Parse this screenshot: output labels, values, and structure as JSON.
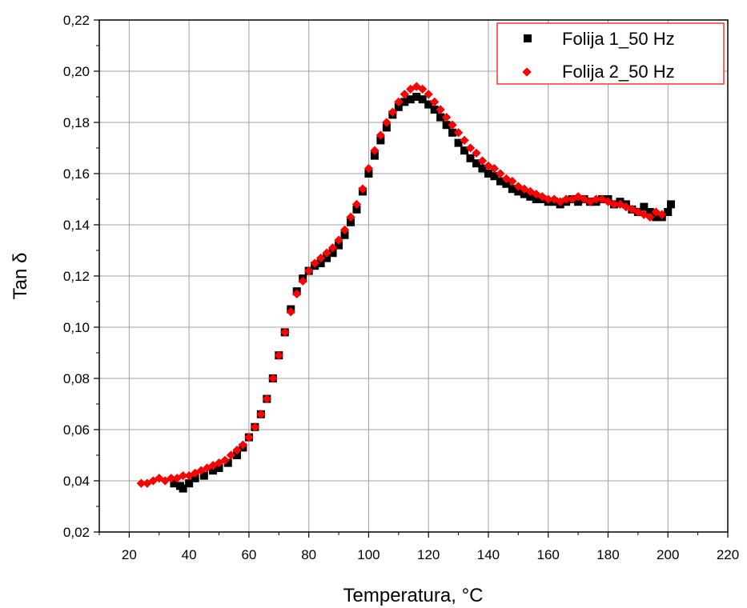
{
  "chart_data": {
    "type": "scatter",
    "xlabel": "Temperatura, °C",
    "ylabel": "Tan δ",
    "xlim": [
      10,
      220
    ],
    "ylim": [
      0.02,
      0.22
    ],
    "xticks": [
      "20",
      "40",
      "60",
      "80",
      "100",
      "120",
      "140",
      "160",
      "180",
      "200",
      "220"
    ],
    "yticks": [
      "0,02",
      "0,04",
      "0,06",
      "0,08",
      "0,10",
      "0,12",
      "0,14",
      "0,16",
      "0,18",
      "0,20",
      "0,22"
    ],
    "grid": true,
    "legend_position": "top-right",
    "series": [
      {
        "name": "Folija 1_50 Hz",
        "marker": "square",
        "color": "#000000",
        "x": [
          35,
          37,
          38,
          40,
          42,
          45,
          48,
          50,
          53,
          56,
          58,
          60,
          62,
          64,
          66,
          68,
          70,
          72,
          74,
          76,
          78,
          80,
          82,
          84,
          86,
          88,
          90,
          92,
          94,
          96,
          98,
          100,
          102,
          104,
          106,
          108,
          110,
          112,
          114,
          116,
          118,
          120,
          122,
          124,
          126,
          128,
          130,
          132,
          134,
          136,
          138,
          140,
          142,
          144,
          146,
          148,
          150,
          152,
          154,
          156,
          158,
          160,
          162,
          164,
          166,
          168,
          170,
          172,
          174,
          176,
          178,
          180,
          182,
          184,
          186,
          188,
          190,
          192,
          194,
          196,
          198,
          200,
          201
        ],
        "y": [
          0.039,
          0.038,
          0.037,
          0.039,
          0.041,
          0.042,
          0.044,
          0.045,
          0.047,
          0.05,
          0.053,
          0.057,
          0.061,
          0.066,
          0.072,
          0.08,
          0.089,
          0.098,
          0.107,
          0.114,
          0.119,
          0.122,
          0.124,
          0.125,
          0.127,
          0.129,
          0.132,
          0.136,
          0.141,
          0.146,
          0.153,
          0.16,
          0.167,
          0.173,
          0.178,
          0.183,
          0.186,
          0.188,
          0.189,
          0.19,
          0.189,
          0.187,
          0.185,
          0.182,
          0.179,
          0.176,
          0.172,
          0.169,
          0.166,
          0.164,
          0.162,
          0.16,
          0.159,
          0.157,
          0.156,
          0.154,
          0.153,
          0.152,
          0.151,
          0.15,
          0.15,
          0.149,
          0.149,
          0.148,
          0.149,
          0.15,
          0.149,
          0.15,
          0.149,
          0.149,
          0.15,
          0.15,
          0.148,
          0.149,
          0.148,
          0.146,
          0.145,
          0.147,
          0.145,
          0.143,
          0.143,
          0.145,
          0.148
        ]
      },
      {
        "name": "Folija 2_50 Hz",
        "marker": "diamond",
        "color": "#ff0000",
        "x": [
          24,
          26,
          28,
          30,
          32,
          34,
          36,
          38,
          40,
          42,
          44,
          46,
          48,
          50,
          52,
          54,
          56,
          58,
          60,
          62,
          64,
          66,
          68,
          70,
          72,
          74,
          76,
          78,
          80,
          82,
          84,
          86,
          88,
          90,
          92,
          94,
          96,
          98,
          100,
          102,
          104,
          106,
          108,
          110,
          112,
          114,
          116,
          118,
          120,
          122,
          124,
          126,
          128,
          130,
          132,
          134,
          136,
          138,
          140,
          142,
          144,
          146,
          148,
          150,
          152,
          154,
          156,
          158,
          160,
          162,
          164,
          166,
          168,
          170,
          172,
          174,
          176,
          178,
          180,
          182,
          184,
          186,
          188,
          190,
          192,
          194,
          196,
          198
        ],
        "y": [
          0.039,
          0.039,
          0.04,
          0.041,
          0.04,
          0.041,
          0.041,
          0.042,
          0.042,
          0.043,
          0.044,
          0.045,
          0.046,
          0.047,
          0.048,
          0.05,
          0.052,
          0.054,
          0.057,
          0.061,
          0.066,
          0.072,
          0.08,
          0.089,
          0.098,
          0.106,
          0.113,
          0.118,
          0.122,
          0.125,
          0.127,
          0.129,
          0.131,
          0.134,
          0.138,
          0.143,
          0.148,
          0.154,
          0.162,
          0.169,
          0.175,
          0.18,
          0.184,
          0.188,
          0.191,
          0.193,
          0.194,
          0.193,
          0.191,
          0.188,
          0.185,
          0.182,
          0.179,
          0.176,
          0.173,
          0.17,
          0.168,
          0.165,
          0.163,
          0.162,
          0.16,
          0.158,
          0.157,
          0.155,
          0.154,
          0.153,
          0.152,
          0.151,
          0.15,
          0.15,
          0.149,
          0.15,
          0.15,
          0.151,
          0.15,
          0.149,
          0.15,
          0.15,
          0.149,
          0.148,
          0.148,
          0.147,
          0.146,
          0.145,
          0.144,
          0.143,
          0.145,
          0.144
        ]
      }
    ]
  }
}
